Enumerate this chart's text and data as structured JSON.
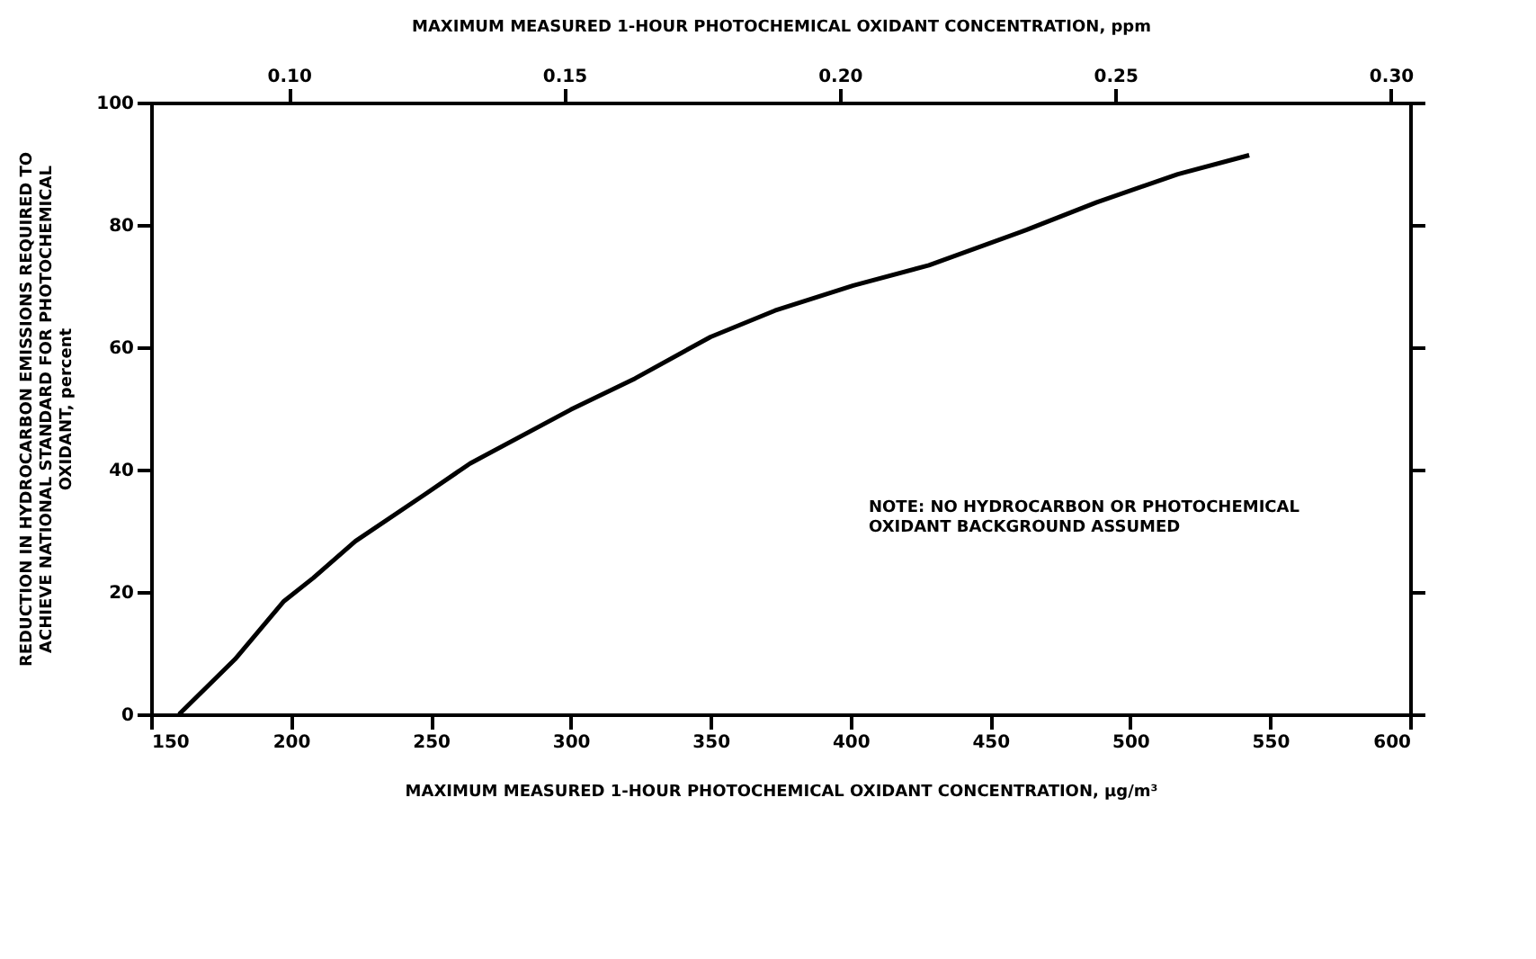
{
  "chart_data": {
    "type": "line",
    "xlabel": "MAXIMUM MEASURED 1-HOUR PHOTOCHEMICAL OXIDANT CONCENTRATION, µg/m³",
    "x2label": "MAXIMUM MEASURED 1-HOUR PHOTOCHEMICAL OXIDANT CONCENTRATION, ppm",
    "ylabel": "REDUCTION IN HYDROCARBON EMISSIONS REQUIRED TO\nACHIEVE NATIONAL STANDARD FOR PHOTOCHEMICAL\nOXIDANT, percent",
    "x": [
      160,
      180,
      197.5,
      208,
      223,
      248,
      264,
      300,
      323,
      350,
      373,
      401,
      428,
      463,
      488,
      517,
      542.5
    ],
    "series": [
      {
        "color": "#000000",
        "values": [
          0,
          9,
          18.5,
          22.3,
          28.3,
          36,
          41,
          49.8,
          54.9,
          61.7,
          66,
          70.1,
          73.4,
          79.2,
          83.7,
          88.3,
          91.4
        ]
      }
    ],
    "xlim": [
      150,
      600
    ],
    "xticks": [
      150,
      200,
      250,
      300,
      350,
      400,
      450,
      500,
      550,
      600
    ],
    "ylim": [
      0,
      100
    ],
    "yticks": [
      0,
      20,
      40,
      60,
      80,
      100
    ],
    "x2lim": [
      0.075,
      0.3035
    ],
    "x2ticks": [
      {
        "value": 0.1,
        "label": "0.10"
      },
      {
        "value": 0.15,
        "label": "0.15"
      },
      {
        "value": 0.2,
        "label": "0.20"
      },
      {
        "value": 0.25,
        "label": "0.25"
      },
      {
        "value": 0.3,
        "label": "0.30"
      }
    ],
    "annotations": [
      "NOTE: NO HYDROCARBON OR PHOTOCHEMICAL\n      OXIDANT BACKGROUND ASSUMED"
    ],
    "grid": false,
    "marker": "none",
    "line_style": "solid"
  }
}
